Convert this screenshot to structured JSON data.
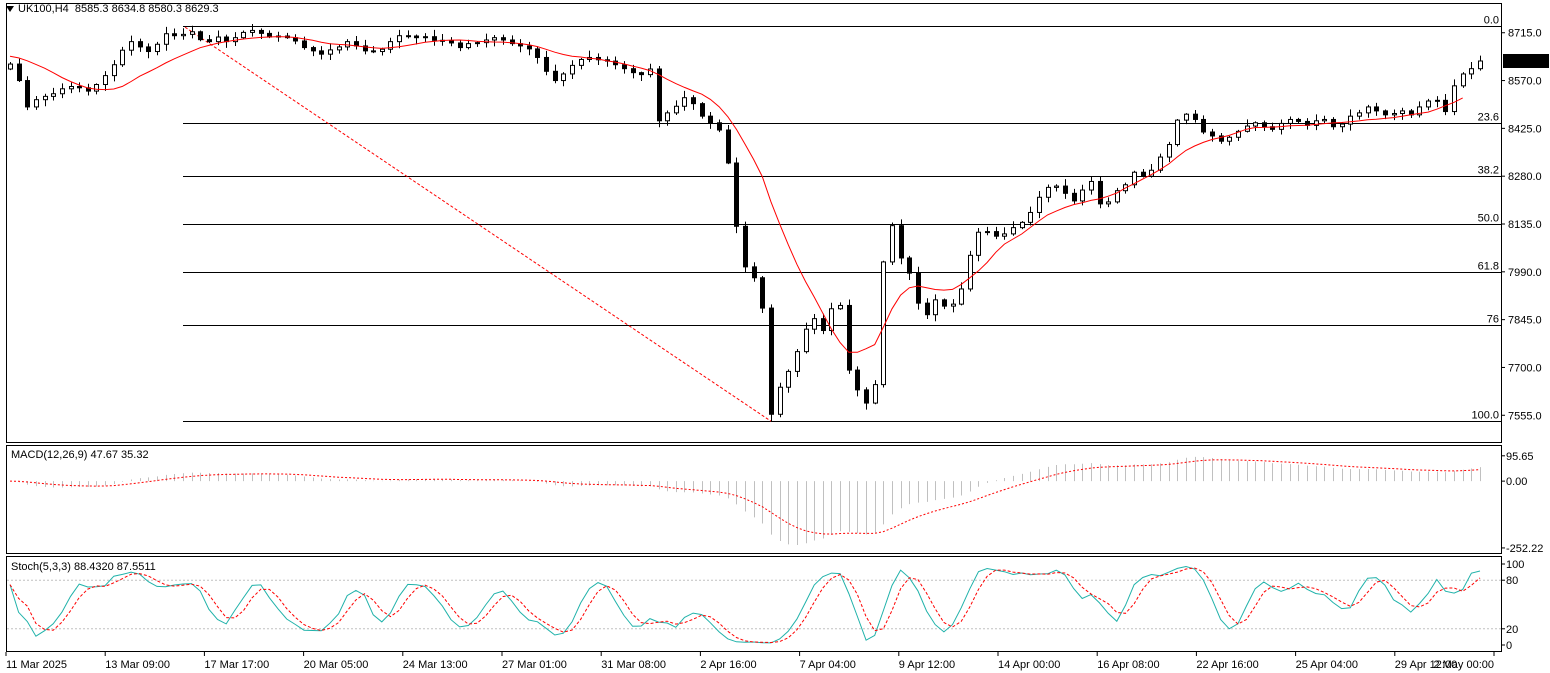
{
  "header": {
    "symbol": "UK100,H4",
    "ohlc": "8585.3 8634.8 8580.3 8629.3",
    "macd_title": "MACD(12,26,9) 47.67 35.32",
    "stoch_title": "Stoch(5,3,3) 88.4320 87.5511"
  },
  "colors": {
    "background": "#ffffff",
    "bull_candle": "#ffffff",
    "bear_candle": "#000000",
    "moving_average": "#ff0000",
    "fib_trend": "#ff0000",
    "macd_hist": "#c0c0c0",
    "stoch_main": "#20b2aa",
    "stoch_signal": "#ff0000"
  },
  "chart_data": [
    {
      "type": "candlestick",
      "name": "UK100,H4",
      "ylim": [
        7480,
        8790
      ],
      "price_axis_ticks": [
        8715.0,
        8570.0,
        8425.0,
        8280.0,
        8135.0,
        7990.0,
        7845.0,
        7700.0,
        7555.0
      ],
      "current_price": 8629.3,
      "time_axis_labels": [
        "11 Mar 2025",
        "13 Mar 09:00",
        "17 Mar 17:00",
        "20 Mar 05:00",
        "24 Mar 13:00",
        "27 Mar 01:00",
        "31 Mar 08:00",
        "2 Apr 16:00",
        "7 Apr 04:00",
        "9 Apr 12:00",
        "14 Apr 00:00",
        "16 Apr 08:00",
        "22 Apr 16:00",
        "25 Apr 04:00",
        "29 Apr 12:00",
        "2 May 00:00"
      ],
      "closes": [
        8620,
        8570,
        8490,
        8512,
        8522,
        8530,
        8545,
        8552,
        8548,
        8538,
        8558,
        8585,
        8618,
        8662,
        8688,
        8672,
        8658,
        8680,
        8712,
        8706,
        8710,
        8718,
        8694,
        8688,
        8702,
        8688,
        8700,
        8716,
        8722,
        8713,
        8702,
        8705,
        8700,
        8690,
        8670,
        8660,
        8650,
        8663,
        8672,
        8688,
        8675,
        8660,
        8658,
        8665,
        8688,
        8706,
        8705,
        8700,
        8703,
        8692,
        8690,
        8684,
        8670,
        8682,
        8685,
        8693,
        8700,
        8693,
        8682,
        8675,
        8666,
        8640,
        8598,
        8570,
        8590,
        8616,
        8634,
        8640,
        8633,
        8629,
        8618,
        8606,
        8594,
        8588,
        8605,
        8448,
        8472,
        8492,
        8518,
        8500,
        8462,
        8442,
        8420,
        8320,
        8128,
        8005,
        7972,
        7880,
        7558,
        7640,
        7688,
        7748,
        7816,
        7848,
        7812,
        7878,
        7888,
        7692,
        7632,
        7592,
        7648,
        8020,
        8130,
        8032,
        7986,
        7895,
        7860,
        7905,
        7886,
        7892,
        7938,
        8040,
        8110,
        8112,
        8098,
        8105,
        8124,
        8140,
        8170,
        8216,
        8246,
        8250,
        8228,
        8205,
        8238,
        8264,
        8196,
        8202,
        8236,
        8254,
        8292,
        8280,
        8298,
        8338,
        8376,
        8450,
        8468,
        8452,
        8414,
        8402,
        8386,
        8398,
        8416,
        8432,
        8442,
        8430,
        8422,
        8440,
        8452,
        8446,
        8434,
        8448,
        8452,
        8430,
        8438,
        8462,
        8472,
        8490,
        8478,
        8466,
        8470,
        8478,
        8466,
        8490,
        8508,
        8510,
        8476,
        8554,
        8590,
        8606,
        8629.3
      ],
      "moving_average": [
        8643.4,
        8638.6,
        8629.8,
        8619.0,
        8607.5,
        8593.7,
        8579.3,
        8567.0,
        8556.4,
        8547.5,
        8543.5,
        8542.6,
        8544.4,
        8552.4,
        8567.2,
        8583.1,
        8595.8,
        8609.1,
        8623.3,
        8635.9,
        8647.2,
        8658.6,
        8669.6,
        8676.5,
        8683.0,
        8688.1,
        8692.4,
        8696.1,
        8698.8,
        8700.8,
        8702.2,
        8703.2,
        8702.3,
        8700.6,
        8696.3,
        8692.1,
        8686.3,
        8681.6,
        8679.6,
        8678.2,
        8675.1,
        8671.9,
        8669.2,
        8667.5,
        8669.9,
        8672.4,
        8676.7,
        8681.2,
        8685.9,
        8688.8,
        8691.3,
        8692.6,
        8693.0,
        8691.4,
        8689.0,
        8687.7,
        8687.0,
        8686.5,
        8684.6,
        8681.9,
        8678.3,
        8673.1,
        8664.8,
        8656.1,
        8648.9,
        8643.9,
        8641.4,
        8637.9,
        8635.3,
        8630.2,
        8625.8,
        8620.5,
        8613.9,
        8607.7,
        8600.2,
        8588.1,
        8573.9,
        8560.8,
        8549.3,
        8538.7,
        8528.5,
        8512.9,
        8490.7,
        8461.1,
        8422.1,
        8377.3,
        8331.0,
        8278.6,
        8202.5,
        8135.6,
        8072.6,
        8012.9,
        7960.7,
        7913.6,
        7864.5,
        7816.1,
        7775.5,
        7745.8,
        7745.8,
        7756.8,
        7769.2,
        7822.8,
        7877.9,
        7919.3,
        7941.5,
        7947.0,
        7941.8,
        7936.5,
        7934.6,
        7936.7,
        7951.8,
        7972.0,
        7993.0,
        8018.4,
        8049.3,
        8074.1,
        8089.5,
        8104.6,
        8124.7,
        8144.5,
        8162.7,
        8174.0,
        8184.9,
        8193.7,
        8199.3,
        8206.6,
        8211.2,
        8219.3,
        8229.1,
        8244.5,
        8257.2,
        8271.5,
        8284.7,
        8300.1,
        8317.0,
        8338.5,
        8358.1,
        8371.5,
        8382.3,
        8391.2,
        8397.2,
        8403.7,
        8413.0,
        8422.5,
        8427.7,
        8427.9,
        8428.7,
        8430.4,
        8433.1,
        8433.8,
        8434.4,
        8436.9,
        8439.6,
        8441.7,
        8442.7,
        8444.9,
        8447.6,
        8451.2,
        8452.9,
        8455.2,
        8457.6,
        8461.8,
        8466.3,
        8470.5,
        8474.2,
        8483.1,
        8493.8,
        8504.1,
        8517.4
      ],
      "fibonacci": {
        "levels": [
          {
            "label": "0.0",
            "price": 8735
          },
          {
            "label": "23.6",
            "price": 8440
          },
          {
            "label": "38.2",
            "price": 8280
          },
          {
            "label": "50.0",
            "price": 8135
          },
          {
            "label": "61.8",
            "price": 7990
          },
          {
            "label": "76",
            "price": 7830
          },
          {
            "label": "100.0",
            "price": 7537
          }
        ]
      }
    },
    {
      "type": "histogram",
      "name": "MACD(12,26,9)",
      "macd_value": 47.67,
      "signal_value": 35.32,
      "ylim": [
        -260,
        110
      ],
      "axis_ticks": [
        95.65,
        0.0,
        -252.22
      ]
    },
    {
      "type": "line",
      "name": "Stoch(5,3,3)",
      "main_value": 88.432,
      "signal_value": 87.5511,
      "ylim": [
        0,
        100
      ],
      "axis_ticks": [
        100,
        80,
        20,
        0
      ],
      "levels": [
        80,
        20
      ]
    }
  ]
}
